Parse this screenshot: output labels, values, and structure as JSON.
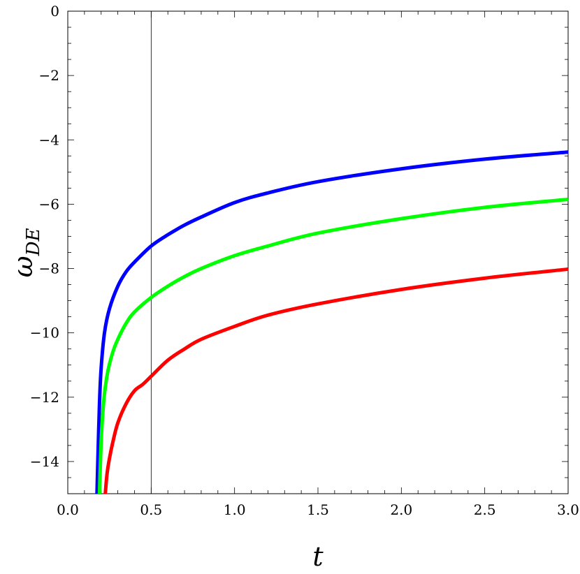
{
  "chart_data": {
    "type": "line",
    "xlabel": "t",
    "ylabel_main": "ω",
    "ylabel_sub": "DE",
    "xlim": [
      0,
      3
    ],
    "ylim": [
      -15,
      0
    ],
    "x_ticks": [
      "0.0",
      "0.5",
      "1.0",
      "1.5",
      "2.0",
      "2.5",
      "3.0"
    ],
    "y_ticks": [
      "0",
      "−2",
      "−4",
      "−6",
      "−8",
      "−10",
      "−12",
      "−14"
    ],
    "grid": false,
    "vertical_reference_line": 0.5,
    "series": [
      {
        "color": "#0000ff",
        "x": [
          0.175,
          0.18,
          0.19,
          0.2,
          0.22,
          0.25,
          0.3,
          0.35,
          0.4,
          0.5,
          0.6,
          0.7,
          0.8,
          1.0,
          1.2,
          1.5,
          2.0,
          2.5,
          3.0
        ],
        "y": [
          -15,
          -14.0,
          -12.2,
          -11.1,
          -10.0,
          -9.25,
          -8.55,
          -8.1,
          -7.8,
          -7.3,
          -6.95,
          -6.65,
          -6.4,
          -5.95,
          -5.65,
          -5.3,
          -4.9,
          -4.6,
          -4.38
        ]
      },
      {
        "color": "#00ff00",
        "x": [
          0.19,
          0.2,
          0.21,
          0.22,
          0.24,
          0.27,
          0.3,
          0.35,
          0.4,
          0.5,
          0.6,
          0.7,
          0.8,
          1.0,
          1.2,
          1.5,
          2.0,
          2.5,
          3.0
        ],
        "y": [
          -15,
          -13.4,
          -12.5,
          -11.9,
          -11.2,
          -10.6,
          -10.2,
          -9.7,
          -9.35,
          -8.9,
          -8.55,
          -8.25,
          -8.0,
          -7.6,
          -7.3,
          -6.9,
          -6.45,
          -6.1,
          -5.85
        ]
      },
      {
        "color": "#ff0000",
        "x": [
          0.225,
          0.235,
          0.25,
          0.27,
          0.3,
          0.35,
          0.4,
          0.45,
          0.5,
          0.6,
          0.7,
          0.8,
          1.0,
          1.2,
          1.5,
          2.0,
          2.5,
          3.0
        ],
        "y": [
          -15,
          -14.4,
          -13.9,
          -13.4,
          -12.8,
          -12.2,
          -11.8,
          -11.6,
          -11.35,
          -10.85,
          -10.5,
          -10.2,
          -9.8,
          -9.45,
          -9.1,
          -8.65,
          -8.3,
          -8.02
        ]
      }
    ]
  }
}
